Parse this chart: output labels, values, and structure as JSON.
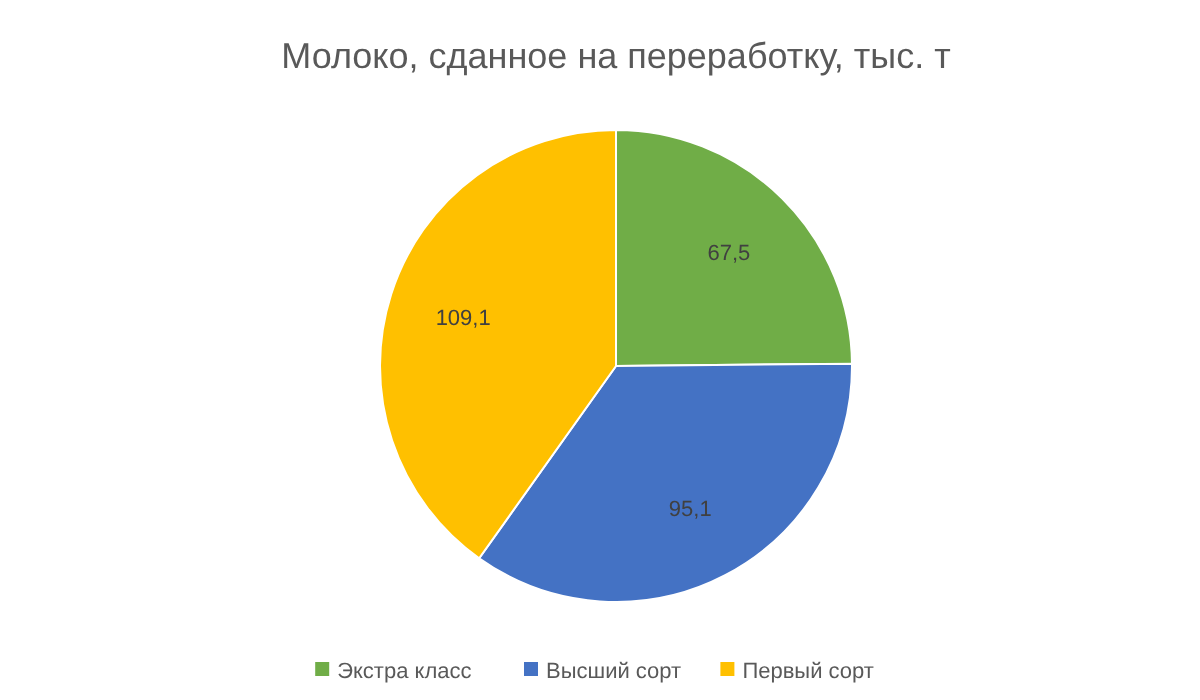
{
  "chart_data": {
    "type": "pie",
    "title": "Молоко, сданное на переработку, тыс. т",
    "categories": [
      "Экстра класс",
      "Высший сорт",
      "Первый сорт"
    ],
    "values": [
      67.5,
      95.1,
      109.1
    ],
    "colors": [
      "#70ad47",
      "#4472c4",
      "#ffc000"
    ],
    "value_labels": [
      "67,5",
      "95,1",
      "109,1"
    ],
    "legend": "bottom"
  }
}
